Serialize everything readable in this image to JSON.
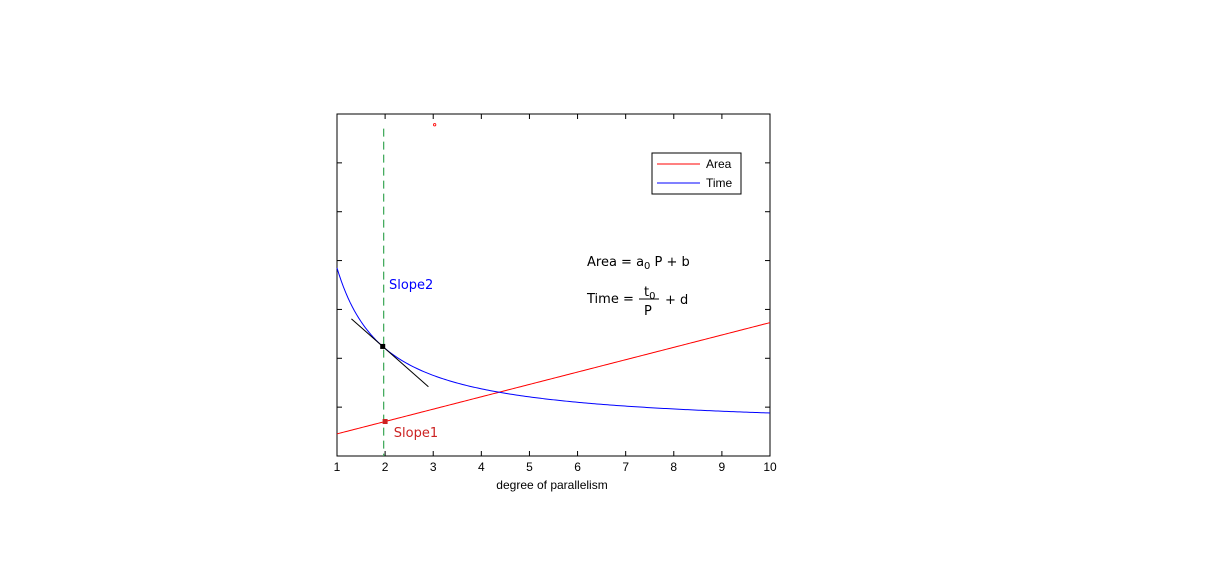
{
  "chart_data": {
    "type": "line",
    "xlabel": "degree of parallelism",
    "ylabel": "",
    "title": "",
    "xlim": [
      1,
      10
    ],
    "xticks": [
      1,
      2,
      3,
      4,
      5,
      6,
      7,
      8,
      9,
      10
    ],
    "ylim": [
      0,
      7
    ],
    "yticks": [
      1,
      2,
      3,
      4,
      5,
      6
    ],
    "show_ytick_labels": false,
    "grid": false,
    "legend_location": "top-right",
    "series": [
      {
        "name": "Area",
        "color": "#ff0000",
        "kind": "linear",
        "slope": 0.253,
        "intercept": 0.2
      },
      {
        "name": "Time",
        "color": "#0000ff",
        "kind": "reciprocal",
        "numerator": 3.3,
        "offset": 0.55
      }
    ],
    "tangent_line": {
      "color": "#000000",
      "x_start": 1.3,
      "x_end": 2.9,
      "point_x": 1.95
    },
    "vertical_marker": {
      "x": 1.97,
      "color": "#3aa655",
      "y_from": 0,
      "y_to": 6.7
    },
    "point_markers": [
      {
        "series": "Time",
        "x": 1.95,
        "color": "#000000"
      },
      {
        "series": "Area",
        "x": 2.0,
        "color": "#cc2222"
      }
    ],
    "stray_point": {
      "x": 3.03,
      "y": 6.78,
      "color": "#ff0000"
    },
    "annotations": [
      {
        "text": "Slope2",
        "color": "#0000ff",
        "x": 2.08,
        "y": 3.42
      },
      {
        "text": "Slope1",
        "color": "#cc2222",
        "x": 2.18,
        "y": 0.39
      }
    ],
    "equations": {
      "area": {
        "lhs": "Area = a",
        "sub": "0",
        "rhs": " P + b"
      },
      "time": {
        "lhs": "Time = ",
        "numerator": "t",
        "numerator_sub": "0",
        "denominator": "P",
        "rhs": "+ d"
      }
    }
  }
}
